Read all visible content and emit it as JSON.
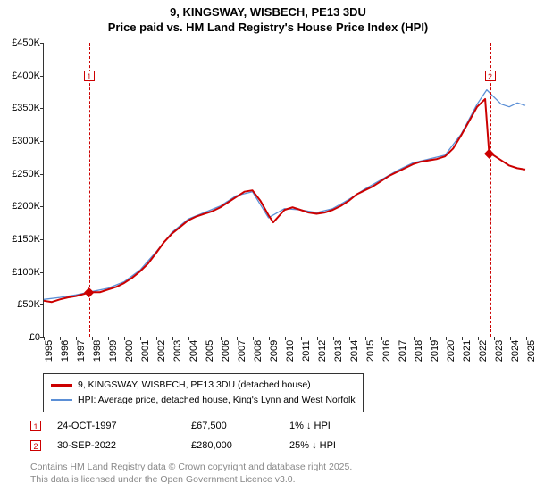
{
  "title": {
    "line1": "9, KINGSWAY, WISBECH, PE13 3DU",
    "line2": "Price paid vs. HM Land Registry's House Price Index (HPI)"
  },
  "chart": {
    "type": "line",
    "x_years": [
      1995,
      1996,
      1997,
      1998,
      1999,
      2000,
      2001,
      2002,
      2003,
      2004,
      2005,
      2006,
      2007,
      2008,
      2009,
      2010,
      2011,
      2012,
      2013,
      2014,
      2015,
      2016,
      2017,
      2018,
      2019,
      2020,
      2021,
      2022,
      2023,
      2024,
      2025
    ],
    "ylim": [
      0,
      450000
    ],
    "ytick_step": 50000,
    "ytick_labels": [
      "£0",
      "£50K",
      "£100K",
      "£150K",
      "£200K",
      "£250K",
      "£300K",
      "£350K",
      "£400K",
      "£450K"
    ],
    "background_color": "#ffffff",
    "axis_color": "#333333",
    "series": [
      {
        "name": "property",
        "label": "9, KINGSWAY, WISBECH, PE13 3DU (detached house)",
        "color": "#cc0000",
        "width": 2,
        "points": [
          [
            1995,
            55000
          ],
          [
            1995.5,
            53000
          ],
          [
            1996,
            57000
          ],
          [
            1996.5,
            60000
          ],
          [
            1997,
            62000
          ],
          [
            1997.82,
            67500
          ],
          [
            1998,
            68000
          ],
          [
            1998.5,
            68000
          ],
          [
            1999,
            72000
          ],
          [
            1999.5,
            76000
          ],
          [
            2000,
            82000
          ],
          [
            2000.5,
            90000
          ],
          [
            2001,
            100000
          ],
          [
            2001.5,
            112000
          ],
          [
            2002,
            128000
          ],
          [
            2002.5,
            145000
          ],
          [
            2003,
            158000
          ],
          [
            2003.5,
            168000
          ],
          [
            2004,
            178000
          ],
          [
            2004.5,
            184000
          ],
          [
            2005,
            188000
          ],
          [
            2005.5,
            192000
          ],
          [
            2006,
            198000
          ],
          [
            2006.5,
            206000
          ],
          [
            2007,
            214000
          ],
          [
            2007.5,
            222000
          ],
          [
            2008,
            224000
          ],
          [
            2008.5,
            208000
          ],
          [
            2009,
            186000
          ],
          [
            2009.3,
            175000
          ],
          [
            2009.7,
            186000
          ],
          [
            2010,
            194000
          ],
          [
            2010.5,
            198000
          ],
          [
            2011,
            194000
          ],
          [
            2011.5,
            190000
          ],
          [
            2012,
            188000
          ],
          [
            2012.5,
            190000
          ],
          [
            2013,
            194000
          ],
          [
            2013.5,
            200000
          ],
          [
            2014,
            208000
          ],
          [
            2014.5,
            218000
          ],
          [
            2015,
            224000
          ],
          [
            2015.5,
            230000
          ],
          [
            2016,
            238000
          ],
          [
            2016.5,
            246000
          ],
          [
            2017,
            252000
          ],
          [
            2017.5,
            258000
          ],
          [
            2018,
            264000
          ],
          [
            2018.5,
            268000
          ],
          [
            2019,
            270000
          ],
          [
            2019.5,
            272000
          ],
          [
            2020,
            276000
          ],
          [
            2020.5,
            288000
          ],
          [
            2021,
            308000
          ],
          [
            2021.5,
            330000
          ],
          [
            2022,
            352000
          ],
          [
            2022.5,
            364000
          ],
          [
            2022.75,
            280000
          ],
          [
            2023,
            278000
          ],
          [
            2023.5,
            270000
          ],
          [
            2024,
            262000
          ],
          [
            2024.5,
            258000
          ],
          [
            2025,
            256000
          ]
        ]
      },
      {
        "name": "hpi",
        "label": "HPI: Average price, detached house, King's Lynn and West Norfolk",
        "color": "#5b8fd6",
        "width": 1.3,
        "points": [
          [
            1995,
            57000
          ],
          [
            1996,
            60000
          ],
          [
            1997,
            64000
          ],
          [
            1998,
            69000
          ],
          [
            1999,
            74000
          ],
          [
            2000,
            84000
          ],
          [
            2001,
            102000
          ],
          [
            2002,
            130000
          ],
          [
            2003,
            160000
          ],
          [
            2004,
            180000
          ],
          [
            2005,
            190000
          ],
          [
            2006,
            200000
          ],
          [
            2007,
            216000
          ],
          [
            2008,
            222000
          ],
          [
            2009,
            182000
          ],
          [
            2010,
            196000
          ],
          [
            2011,
            194000
          ],
          [
            2012,
            190000
          ],
          [
            2013,
            196000
          ],
          [
            2014,
            210000
          ],
          [
            2015,
            226000
          ],
          [
            2016,
            240000
          ],
          [
            2017,
            254000
          ],
          [
            2018,
            266000
          ],
          [
            2019,
            272000
          ],
          [
            2020,
            278000
          ],
          [
            2021,
            310000
          ],
          [
            2022,
            356000
          ],
          [
            2022.6,
            378000
          ],
          [
            2023,
            368000
          ],
          [
            2023.5,
            356000
          ],
          [
            2024,
            352000
          ],
          [
            2024.5,
            358000
          ],
          [
            2025,
            354000
          ]
        ]
      }
    ],
    "markers": [
      {
        "id": "1",
        "year": 1997.82
      },
      {
        "id": "2",
        "year": 2022.75
      }
    ]
  },
  "legend": {
    "items": [
      {
        "color": "#cc0000",
        "label": "9, KINGSWAY, WISBECH, PE13 3DU (detached house)"
      },
      {
        "color": "#5b8fd6",
        "label": "HPI: Average price, detached house, King's Lynn and West Norfolk"
      }
    ]
  },
  "price_rows": [
    {
      "marker": "1",
      "date": "24-OCT-1997",
      "amount": "£67,500",
      "delta": "1% ↓ HPI"
    },
    {
      "marker": "2",
      "date": "30-SEP-2022",
      "amount": "£280,000",
      "delta": "25% ↓ HPI"
    }
  ],
  "footer": {
    "line1": "Contains HM Land Registry data © Crown copyright and database right 2025.",
    "line2": "This data is licensed under the Open Government Licence v3.0."
  }
}
